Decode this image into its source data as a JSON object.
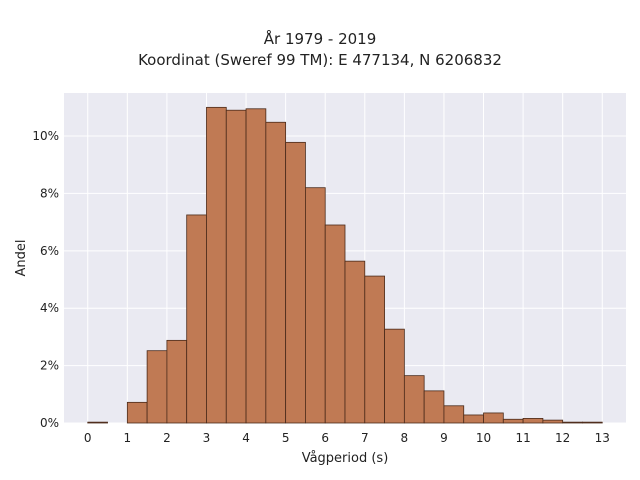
{
  "chart_data": {
    "type": "bar",
    "title": "År 1979 - 2019",
    "subtitle": "Koordinat (Sweref 99 TM): E 477134, N 6206832",
    "xlabel": "Vågperiod (s)",
    "ylabel": "Andel",
    "bin_width": 0.5,
    "bins": [
      {
        "x0": 0.0,
        "x1": 0.5,
        "value": 0.03
      },
      {
        "x0": 0.5,
        "x1": 1.0,
        "value": 0.0
      },
      {
        "x0": 1.0,
        "x1": 1.5,
        "value": 0.72
      },
      {
        "x0": 1.5,
        "x1": 2.0,
        "value": 2.52
      },
      {
        "x0": 2.0,
        "x1": 2.5,
        "value": 2.88
      },
      {
        "x0": 2.5,
        "x1": 3.0,
        "value": 7.25
      },
      {
        "x0": 3.0,
        "x1": 3.5,
        "value": 11.0
      },
      {
        "x0": 3.5,
        "x1": 4.0,
        "value": 10.9
      },
      {
        "x0": 4.0,
        "x1": 4.5,
        "value": 10.95
      },
      {
        "x0": 4.5,
        "x1": 5.0,
        "value": 10.48
      },
      {
        "x0": 5.0,
        "x1": 5.5,
        "value": 9.78
      },
      {
        "x0": 5.5,
        "x1": 6.0,
        "value": 8.2
      },
      {
        "x0": 6.0,
        "x1": 6.5,
        "value": 6.9
      },
      {
        "x0": 6.5,
        "x1": 7.0,
        "value": 5.64
      },
      {
        "x0": 7.0,
        "x1": 7.5,
        "value": 5.12
      },
      {
        "x0": 7.5,
        "x1": 8.0,
        "value": 3.27
      },
      {
        "x0": 8.0,
        "x1": 8.5,
        "value": 1.65
      },
      {
        "x0": 8.5,
        "x1": 9.0,
        "value": 1.12
      },
      {
        "x0": 9.0,
        "x1": 9.5,
        "value": 0.6
      },
      {
        "x0": 9.5,
        "x1": 10.0,
        "value": 0.28
      },
      {
        "x0": 10.0,
        "x1": 10.5,
        "value": 0.35
      },
      {
        "x0": 10.5,
        "x1": 11.0,
        "value": 0.13
      },
      {
        "x0": 11.0,
        "x1": 11.5,
        "value": 0.16
      },
      {
        "x0": 11.5,
        "x1": 12.0,
        "value": 0.1
      },
      {
        "x0": 12.0,
        "x1": 12.5,
        "value": 0.03
      },
      {
        "x0": 12.5,
        "x1": 13.0,
        "value": 0.03
      }
    ],
    "xlim": [
      -0.6,
      13.6
    ],
    "ylim": [
      0,
      11.5
    ],
    "x_ticks": [
      "0",
      "1",
      "2",
      "3",
      "4",
      "5",
      "6",
      "7",
      "8",
      "9",
      "10",
      "11",
      "12",
      "13"
    ],
    "y_ticks": [
      "0%",
      "2%",
      "4%",
      "6%",
      "8%",
      "10%"
    ],
    "grid": true,
    "bar_color": "#c07a54",
    "bar_edge_color": "#4a2a1a",
    "plot_background": "#eaeaf2",
    "grid_color": "#ffffff"
  }
}
